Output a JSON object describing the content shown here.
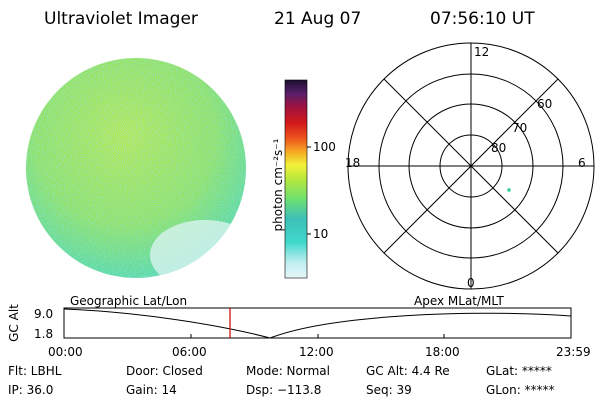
{
  "header": {
    "instrument": "Ultraviolet Imager",
    "date": "21 Aug 07",
    "time": "07:56:10 UT"
  },
  "colorbar": {
    "unit_label": "photon cm⁻²s⁻¹",
    "ticks": [
      "100",
      "10"
    ],
    "scale": "log",
    "colors": [
      "#e8f6f8",
      "#bfeef0",
      "#40d8cc",
      "#3ec0b8",
      "#6fe070",
      "#b8e83c",
      "#f2f23a",
      "#f5a623",
      "#ef5a1e",
      "#d41a1a",
      "#a3123c",
      "#5a1e6a",
      "#1a1030"
    ]
  },
  "polar_plot": {
    "hour_labels": [
      "12",
      "18",
      "6",
      "0"
    ],
    "lat_labels": [
      "60",
      "70",
      "80"
    ],
    "point_color": "#33cc99"
  },
  "timeline": {
    "left_label": "Geographic Lat/Lon",
    "right_label": "Apex MLat/MLT",
    "axis_label": "GC Alt",
    "y_ticks": [
      "9.0",
      "1.8"
    ],
    "x_ticks": [
      "00:00",
      "06:00",
      "12:00",
      "18:00",
      "23:59"
    ],
    "marker_color": "#cc0000"
  },
  "info": {
    "flt": "Flt: LBHL",
    "ip": "IP: 36.0",
    "door": "Door: Closed",
    "gain": "Gain: 14",
    "mode": "Mode: Normal",
    "dsp": "Dsp: −113.8",
    "gcalt": "GC Alt: 4.4 Re",
    "seq": "Seq: 39",
    "glat": "GLat: *****",
    "glon": "GLon: *****"
  }
}
